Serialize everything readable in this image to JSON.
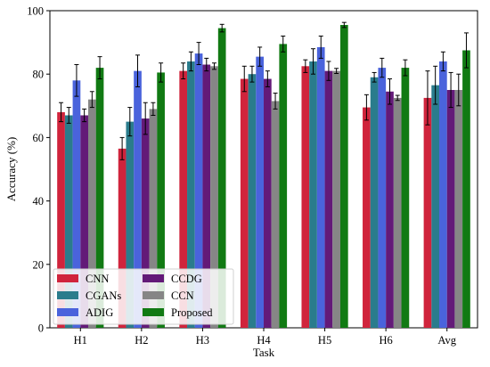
{
  "chart_data": {
    "type": "bar",
    "title": "",
    "xlabel": "Task",
    "ylabel": "Accuracy (%)",
    "ylim": [
      0,
      100
    ],
    "yticks": [
      0,
      20,
      40,
      60,
      80,
      100
    ],
    "categories": [
      "H1",
      "H2",
      "H3",
      "H4",
      "H5",
      "H6",
      "Avg"
    ],
    "grid": false,
    "legend": {
      "placement": "lower-left",
      "columns": 2
    },
    "series": [
      {
        "name": "CNN",
        "color": "#d0243c",
        "values": [
          68.0,
          56.5,
          81.0,
          78.5,
          82.5,
          69.5,
          72.5
        ],
        "errors": [
          3.0,
          3.5,
          2.5,
          4.0,
          2.0,
          4.0,
          8.5
        ]
      },
      {
        "name": "CGANs",
        "color": "#2a7c8c",
        "values": [
          67.0,
          65.0,
          84.0,
          80.0,
          84.0,
          79.0,
          76.5
        ],
        "errors": [
          2.5,
          4.5,
          3.0,
          2.5,
          4.0,
          1.5,
          6.0
        ]
      },
      {
        "name": "ADIG",
        "color": "#4a63dc",
        "values": [
          78.0,
          81.0,
          86.5,
          85.5,
          88.5,
          82.0,
          84.0
        ],
        "errors": [
          5.0,
          5.0,
          3.5,
          3.0,
          3.5,
          3.0,
          3.0
        ]
      },
      {
        "name": "CCDG",
        "color": "#631a78",
        "values": [
          67.0,
          66.0,
          83.0,
          78.5,
          81.0,
          74.5,
          75.0
        ],
        "errors": [
          2.0,
          5.0,
          2.0,
          2.5,
          3.0,
          4.0,
          5.5
        ]
      },
      {
        "name": "CCN",
        "color": "#868686",
        "values": [
          72.0,
          69.0,
          82.5,
          71.5,
          81.0,
          72.5,
          75.0
        ],
        "errors": [
          2.5,
          2.0,
          1.0,
          2.5,
          0.8,
          0.8,
          5.0
        ]
      },
      {
        "name": "Proposed",
        "color": "#117a13",
        "values": [
          82.0,
          80.5,
          94.5,
          89.5,
          95.5,
          82.0,
          87.5
        ],
        "errors": [
          3.5,
          3.0,
          1.2,
          2.5,
          0.8,
          2.5,
          5.5
        ]
      }
    ]
  }
}
